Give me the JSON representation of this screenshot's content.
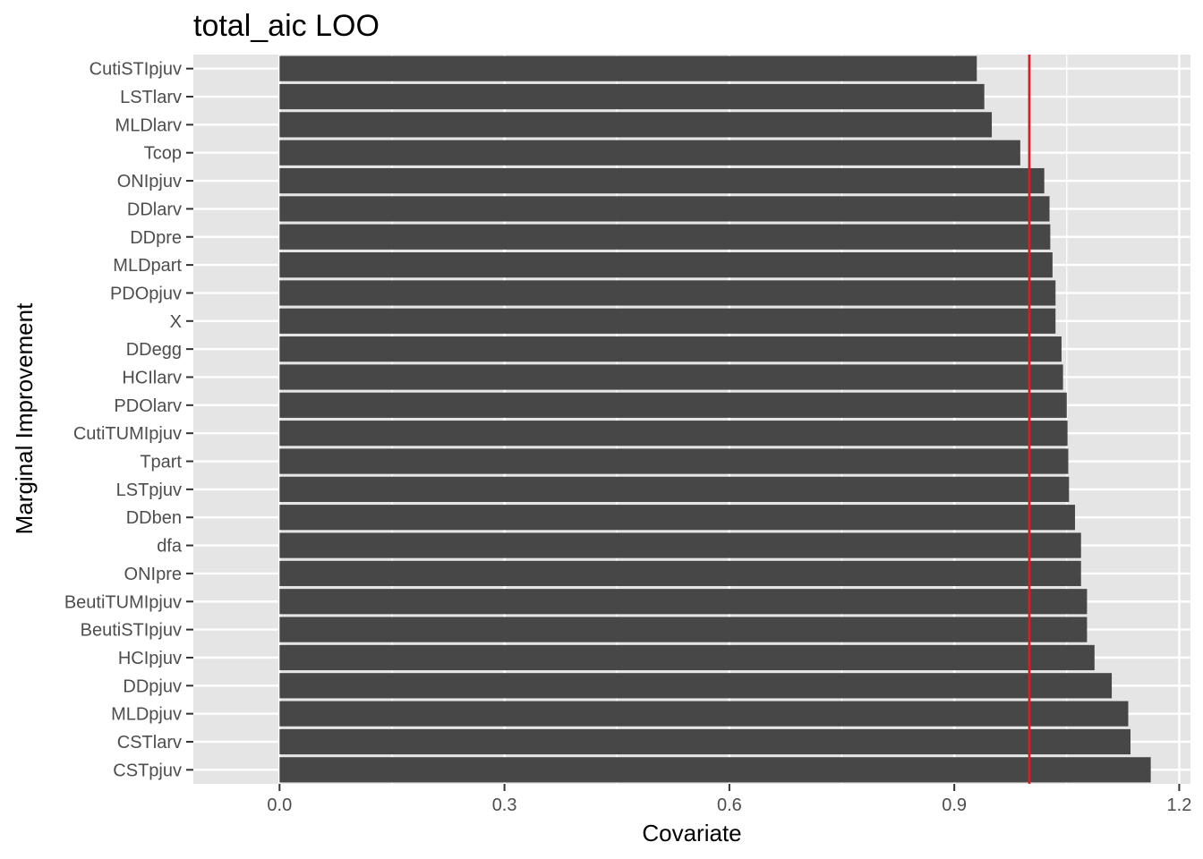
{
  "chart_data": {
    "type": "bar",
    "orientation": "horizontal",
    "title": "total_aic LOO",
    "xlabel": "Covariate",
    "ylabel": "Marginal Improvement",
    "xlim": [
      -0.115,
      1.215
    ],
    "xticks": [
      "0.0",
      "0.3",
      "0.6",
      "0.9",
      "1.2"
    ],
    "xtick_values": [
      0.0,
      0.3,
      0.6,
      0.9,
      1.2
    ],
    "reference_line": {
      "x": 1.0,
      "color": "#e31a1c"
    },
    "bar_color": "#474747",
    "panel_color": "#e5e5e5",
    "grid": true,
    "categories": [
      "CutiSTIpjuv",
      "LSTlarv",
      "MLDlarv",
      "Tcop",
      "ONIpjuv",
      "DDlarv",
      "DDpre",
      "MLDpart",
      "PDOpjuv",
      "X",
      "DDegg",
      "HCIlarv",
      "PDOlarv",
      "CutiTUMIpjuv",
      "Tpart",
      "LSTpjuv",
      "DDben",
      "dfa",
      "ONIpre",
      "BeutiTUMIpjuv",
      "BeutiSTIpjuv",
      "HCIpjuv",
      "DDpjuv",
      "MLDpjuv",
      "CSTlarv",
      "CSTpjuv"
    ],
    "values": [
      0.93,
      0.94,
      0.95,
      0.988,
      1.02,
      1.027,
      1.028,
      1.031,
      1.035,
      1.035,
      1.043,
      1.045,
      1.05,
      1.051,
      1.052,
      1.053,
      1.061,
      1.069,
      1.069,
      1.077,
      1.077,
      1.087,
      1.11,
      1.132,
      1.135,
      1.162
    ]
  }
}
